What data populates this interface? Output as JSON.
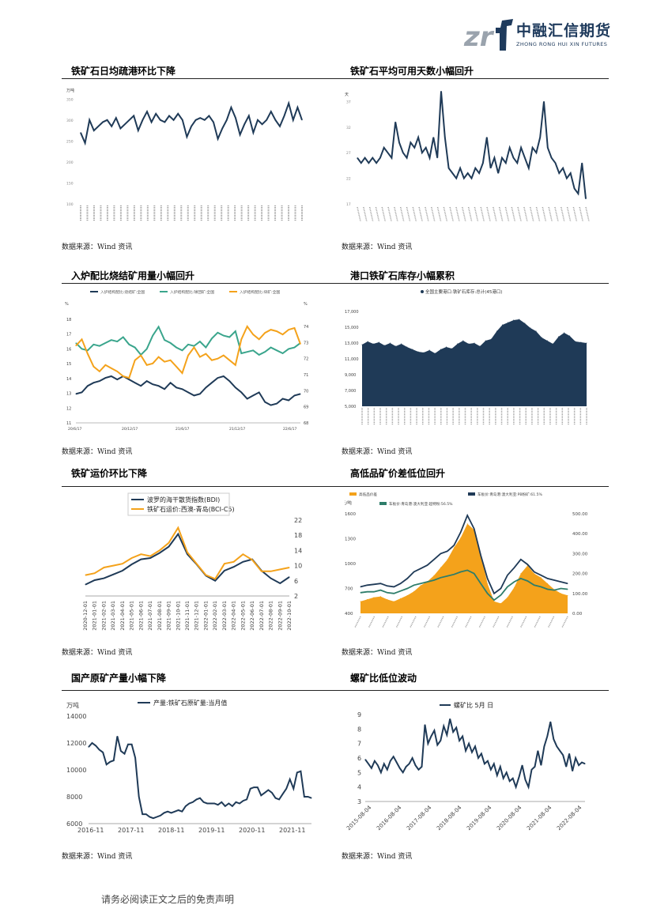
{
  "header": {
    "brand_cn": "中融汇信期货",
    "brand_en": "ZHONG RONG HUI XIN FUTURES",
    "logo_mark": "zrf"
  },
  "sections": [
    {
      "title": "铁矿石日均疏港环比下降",
      "source": "数据来源：Wind 资讯"
    },
    {
      "title": "铁矿石平均可用天数小幅回升",
      "source": "数据来源：Wind 资讯"
    },
    {
      "title": "入炉配比烧结矿用量小幅回升",
      "source": "数据来源：Wind 资讯"
    },
    {
      "title": "港口铁矿石库存小幅累积",
      "source": "数据来源：Wind 资讯"
    },
    {
      "title": "铁矿运价环比下降",
      "source": "数据来源：Wind 资讯"
    },
    {
      "title": "高低品矿价差低位回升",
      "source": "数据来源：Wind 资讯"
    },
    {
      "title": "国产原矿产量小幅下降",
      "source": "数据来源：Wind 资讯"
    },
    {
      "title": "螺矿比低位波动",
      "source": "数据来源：Wind 资讯"
    }
  ],
  "footer": "请务必阅读正文之后的免责声明",
  "colors": {
    "navy": "#1f3a57",
    "teal": "#3aa58c",
    "orange": "#f4a21b",
    "grey": "#666666"
  },
  "chart_data": [
    {
      "type": "line",
      "ylabel": "万吨",
      "ylim": [
        100,
        360
      ],
      "yticks": [
        100,
        150,
        200,
        250,
        300,
        350
      ],
      "series": [
        {
          "values": [
            270,
            245,
            300,
            275,
            285,
            295,
            300,
            285,
            305,
            280,
            290,
            300,
            310,
            275,
            300,
            320,
            295,
            315,
            300,
            295,
            310,
            300,
            315,
            300,
            260,
            285,
            300,
            305,
            300,
            310,
            295,
            255,
            280,
            300,
            330,
            305,
            265,
            290,
            310,
            270,
            300,
            290,
            300,
            320,
            300,
            285,
            310,
            340,
            300,
            330,
            300
          ]
        }
      ]
    },
    {
      "type": "line",
      "ylabel": "天",
      "ylim": [
        17,
        38
      ],
      "yticks": [
        17,
        22,
        27,
        32,
        37
      ],
      "series": [
        {
          "values": [
            26,
            25,
            26,
            25,
            26,
            25,
            26,
            28,
            27,
            26,
            33,
            29,
            27,
            26,
            29,
            28,
            30,
            27,
            28,
            26,
            30,
            26,
            39,
            30,
            24,
            23,
            22,
            24,
            22,
            23,
            22,
            24,
            23,
            25,
            30,
            24,
            26,
            23,
            26,
            25,
            28,
            26,
            25,
            28,
            26,
            24,
            28,
            27,
            30,
            37,
            28,
            26,
            25,
            23,
            24,
            22,
            23,
            20,
            19,
            25,
            18
          ]
        }
      ]
    },
    {
      "type": "line",
      "xticks": [
        "20/6/17",
        "20/12/17",
        "21/6/17",
        "21/12/17",
        "22/6/17"
      ],
      "yticks_left": [
        11,
        12,
        13,
        14,
        15,
        16,
        17,
        18
      ],
      "yticks_right": [
        68,
        69,
        70,
        71,
        72,
        73,
        74
      ],
      "ylabel_left": "%",
      "ylabel_right": "%",
      "series": [
        {
          "name": "入炉结构配比:烧结矿:全国",
          "axis": "right",
          "values": [
            69.8,
            69.9,
            70.3,
            70.5,
            70.6,
            70.8,
            70.9,
            70.7,
            70.9,
            70.7,
            70.5,
            70.3,
            70.6,
            70.4,
            70.3,
            70.1,
            70.5,
            70.2,
            70.1,
            69.9,
            69.7,
            69.8,
            70.2,
            70.5,
            70.8,
            70.9,
            70.6,
            70.2,
            69.9,
            69.5,
            69.7,
            69.9,
            69.3,
            69.1,
            69.2,
            69.5,
            69.4,
            69.7,
            69.8
          ]
        },
        {
          "name": "入炉结构配比:球团矿:全国",
          "axis": "left",
          "values": [
            16.4,
            16.0,
            15.9,
            16.3,
            16.2,
            16.4,
            16.6,
            16.5,
            16.8,
            16.3,
            16.1,
            15.6,
            16.0,
            16.9,
            17.5,
            16.6,
            16.4,
            16.1,
            15.9,
            16.3,
            16.2,
            16.5,
            16.1,
            16.7,
            17.1,
            16.9,
            16.8,
            17.2,
            15.7,
            15.8,
            15.9,
            15.6,
            15.8,
            16.1,
            15.9,
            15.7,
            16.0,
            16.1,
            16.4
          ]
        },
        {
          "name": "入炉结构配比:块矿:全国",
          "axis": "right",
          "values": [
            72.8,
            73.2,
            72.3,
            71.5,
            71.2,
            71.6,
            71.4,
            71.2,
            70.9,
            70.8,
            71.9,
            72.2,
            71.6,
            71.7,
            72.1,
            71.8,
            71.9,
            71.5,
            71.1,
            72.2,
            72.7,
            72.1,
            72.3,
            71.9,
            72.0,
            72.2,
            71.9,
            71.6,
            73.2,
            74.0,
            73.5,
            73.2,
            73.6,
            73.8,
            73.7,
            73.5,
            73.8,
            73.9,
            72.9
          ]
        }
      ]
    },
    {
      "type": "area",
      "legend": "全国主要港口:铁矿石库存:总计(45港口)",
      "ylim": [
        5000,
        17000
      ],
      "yticks": [
        "5,000",
        "7,000",
        "9,000",
        "11,000",
        "13,000",
        "15,000",
        "17,000"
      ],
      "values": [
        12800,
        13200,
        12900,
        13100,
        12700,
        13000,
        12600,
        12900,
        12500,
        12200,
        11900,
        11800,
        12100,
        11700,
        12200,
        12500,
        12300,
        12900,
        13300,
        12900,
        13000,
        12600,
        13300,
        13500,
        14500,
        15300,
        15600,
        15900,
        16000,
        15500,
        14900,
        14500,
        13700,
        13300,
        12900,
        13800,
        14300,
        13900,
        13200,
        13100,
        13000
      ]
    },
    {
      "type": "line",
      "x": [
        "2020-12-01",
        "2021-01-01",
        "2021-02-01",
        "2021-03-01",
        "2021-04-01",
        "2021-05-01",
        "2021-06-01",
        "2021-07-01",
        "2021-08-01",
        "2021-09-01",
        "2021-10-01",
        "2021-11-01",
        "2021-12-01",
        "2022-01-01",
        "2022-02-01",
        "2022-03-01",
        "2022-04-01",
        "2022-05-01",
        "2022-06-01",
        "2022-07-01",
        "2022-08-01",
        "2022-09-01",
        "2022-10-01"
      ],
      "yticks_left": [
        300,
        1300,
        2300,
        3300,
        4300,
        5300,
        6300
      ],
      "yticks_right": [
        2,
        6,
        10,
        14,
        18,
        22
      ],
      "series": [
        {
          "name": "波罗的海干散货指数(BDI)",
          "axis": "left",
          "values": [
            1200,
            1550,
            1700,
            2000,
            2300,
            2800,
            3200,
            3300,
            3700,
            4200,
            5200,
            3600,
            2800,
            1900,
            1500,
            2300,
            2600,
            3000,
            3200,
            2300,
            1700,
            1300,
            1800
          ]
        },
        {
          "name": "铁矿石运价:西澳-青岛(BCI-C5)",
          "axis": "right",
          "values": [
            7.5,
            8,
            9.5,
            10,
            10.5,
            12,
            13,
            12.5,
            14,
            16,
            20,
            13.5,
            10.5,
            7.5,
            6.5,
            10.5,
            11,
            13,
            11.5,
            8.5,
            8.5,
            9,
            9.5
          ]
        }
      ]
    },
    {
      "type": "line",
      "ylabel": "元/吨",
      "yticks_left": [
        400,
        700,
        1000,
        1300,
        1600
      ],
      "yticks_right": [
        "0.00",
        "100.00",
        "200.00",
        "300.00",
        "400.00",
        "500.00"
      ],
      "series": [
        {
          "name": "高低品价差",
          "axis": "right",
          "values": [
            60,
            70,
            80,
            85,
            70,
            60,
            75,
            90,
            110,
            140,
            160,
            190,
            230,
            270,
            330,
            380,
            450,
            420,
            300,
            150,
            60,
            50,
            80,
            130,
            200,
            240,
            200,
            180,
            150,
            120,
            100,
            90
          ]
        },
        {
          "name": "车板价:青岛港:澳大利亚:PB粉矿:61.5%",
          "axis": "left",
          "values": [
            720,
            740,
            750,
            760,
            730,
            720,
            760,
            820,
            900,
            940,
            980,
            1050,
            1120,
            1150,
            1220,
            1380,
            1580,
            1420,
            1100,
            820,
            640,
            700,
            860,
            950,
            1050,
            990,
            900,
            860,
            820,
            800,
            780,
            760
          ]
        },
        {
          "name": "车板价:青岛港:澳大利亚:超特粉:56.5%",
          "axis": "left",
          "values": [
            650,
            660,
            660,
            680,
            650,
            640,
            670,
            700,
            740,
            760,
            780,
            800,
            830,
            850,
            870,
            900,
            920,
            880,
            760,
            640,
            560,
            620,
            720,
            780,
            820,
            790,
            740,
            720,
            690,
            680,
            700,
            690
          ]
        }
      ]
    },
    {
      "type": "line",
      "ylabel": "万吨",
      "xticks": [
        "2016-11",
        "2017-11",
        "2018-11",
        "2019-11",
        "2020-11",
        "2021-11"
      ],
      "yticks": [
        6000,
        8000,
        10000,
        12000,
        14000
      ],
      "series": [
        {
          "name": "产量:铁矿石原矿量:当月值",
          "values": [
            11700,
            12000,
            11800,
            11500,
            11300,
            10400,
            10600,
            10700,
            12500,
            11400,
            11200,
            11900,
            11900,
            10900,
            8000,
            6700,
            6700,
            6500,
            6400,
            6500,
            6600,
            6800,
            6900,
            6800,
            6900,
            7000,
            6900,
            7300,
            7500,
            7600,
            7800,
            7900,
            7600,
            7500,
            7500,
            7500,
            7400,
            7600,
            7300,
            7500,
            7300,
            7600,
            7500,
            7700,
            7800,
            8600,
            8700,
            8700,
            8100,
            8300,
            8500,
            8300,
            7900,
            7800,
            8200,
            8600,
            9300,
            8600,
            9800,
            9900,
            8000,
            8000,
            7900
          ]
        }
      ]
    },
    {
      "type": "line",
      "legend": "螺矿比  5月 日",
      "xticks": [
        "2015-08-04",
        "2016-08-04",
        "2017-08-04",
        "2018-08-04",
        "2019-08-04",
        "2020-08-04",
        "2021-08-04",
        "2022-08-04"
      ],
      "yticks": [
        3,
        4,
        5,
        6,
        7,
        8,
        9
      ],
      "series": [
        {
          "values": [
            5.9,
            5.6,
            5.3,
            5.8,
            5.5,
            5.0,
            5.6,
            5.2,
            5.8,
            6.1,
            5.7,
            5.3,
            5.0,
            5.4,
            5.6,
            6.0,
            5.5,
            5.2,
            5.4,
            8.3,
            7.0,
            7.5,
            7.9,
            6.9,
            7.2,
            8.2,
            7.6,
            8.7,
            7.8,
            8.1,
            7.2,
            7.5,
            6.5,
            7.0,
            6.4,
            6.8,
            6.0,
            6.3,
            5.6,
            5.8,
            5.2,
            5.6,
            4.8,
            5.4,
            4.6,
            5.0,
            4.4,
            4.6,
            4.0,
            4.7,
            5.5,
            4.5,
            4.0,
            5.2,
            5.4,
            6.5,
            5.5,
            6.8,
            7.5,
            8.5,
            7.3,
            6.8,
            6.5,
            6.2,
            5.4,
            6.3,
            5.1,
            6.0,
            5.5,
            5.7,
            5.6
          ]
        }
      ]
    }
  ]
}
